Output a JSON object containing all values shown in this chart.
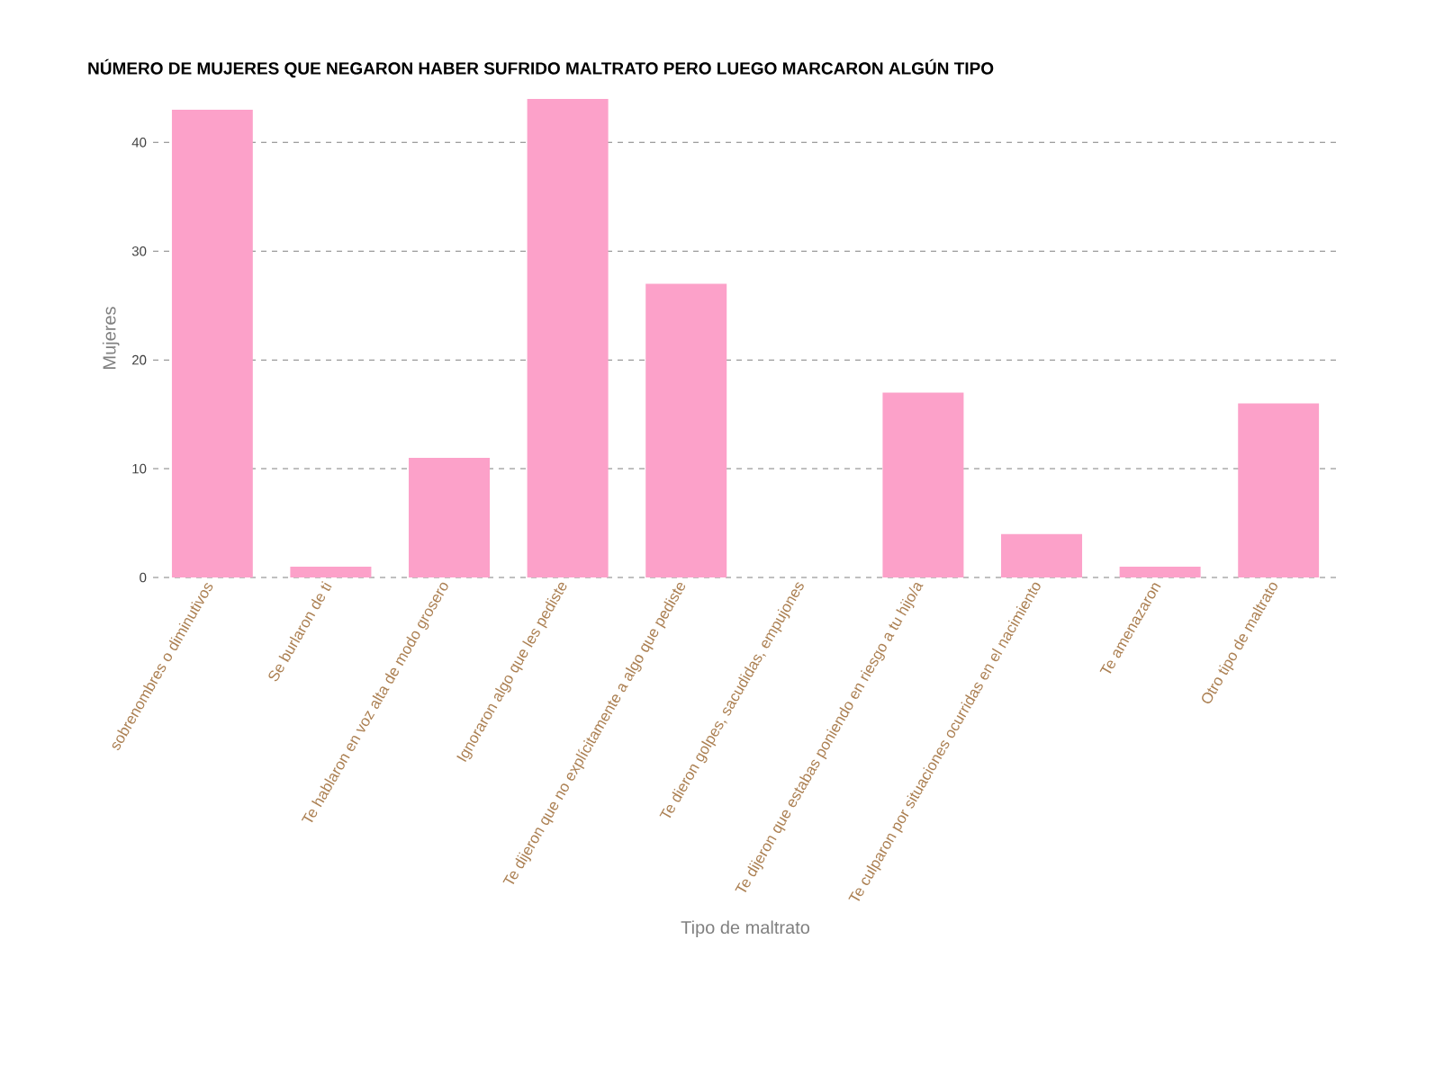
{
  "chart_data": {
    "type": "bar",
    "title": "NÚMERO DE MUJERES QUE NEGARON HABER SUFRIDO MALTRATO PERO LUEGO MARCARON ALGÚN TIPO",
    "xlabel": "Tipo de maltrato",
    "ylabel": "Mujeres",
    "categories": [
      "sobrenombres o diminutivos",
      "Se burlaron de ti",
      "Te hablaron en voz alta de modo grosero",
      "Ignoraron algo que les pediste",
      "Te dijeron que no explícitamente a algo que pediste",
      "Te dieron golpes, sacudidas, empujones",
      "Te dijeron que estabas poniendo en riesgo a tu hijo/a",
      "Te culparon por situaciones ocurridas en el nacimiento",
      "Te amenazaron",
      "Otro tipo de maltrato"
    ],
    "values": [
      43,
      1,
      11,
      44,
      27,
      0,
      17,
      4,
      1,
      16
    ],
    "color": "#fca1c9",
    "ylim": [
      0,
      44
    ],
    "yticks": [
      0,
      10,
      20,
      30,
      40
    ],
    "grid": "y"
  }
}
